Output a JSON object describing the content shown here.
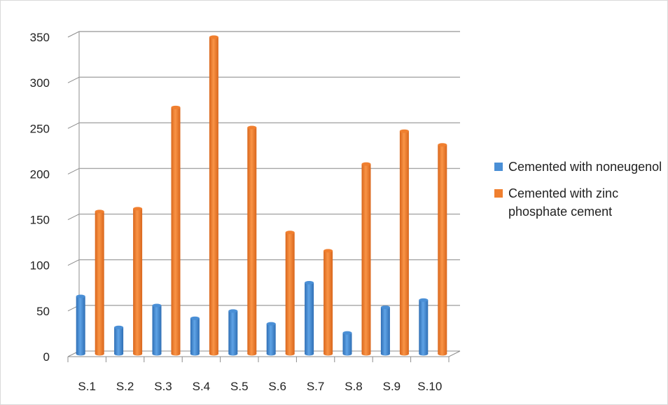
{
  "chart_data": {
    "type": "bar",
    "title": "",
    "xlabel": "",
    "ylabel": "",
    "ylim": [
      0,
      350
    ],
    "yticks": [
      0,
      50,
      100,
      150,
      200,
      250,
      300,
      350
    ],
    "grid": true,
    "legend_position": "right",
    "categories": [
      "S.1",
      "S.2",
      "S.3",
      "S.4",
      "S.5",
      "S.6",
      "S.7",
      "S.8",
      "S.9",
      "S.10"
    ],
    "series": [
      {
        "name": "Cemented with noneugenol",
        "color": "#4a8fd6",
        "values": [
          66,
          32,
          56,
          42,
          50,
          36,
          81,
          26,
          54,
          62
        ]
      },
      {
        "name": "Cemented with zinc phosphate cement",
        "color": "#f07f2f",
        "values": [
          159,
          162,
          273,
          350,
          251,
          136,
          116,
          211,
          247,
          232
        ]
      }
    ]
  }
}
